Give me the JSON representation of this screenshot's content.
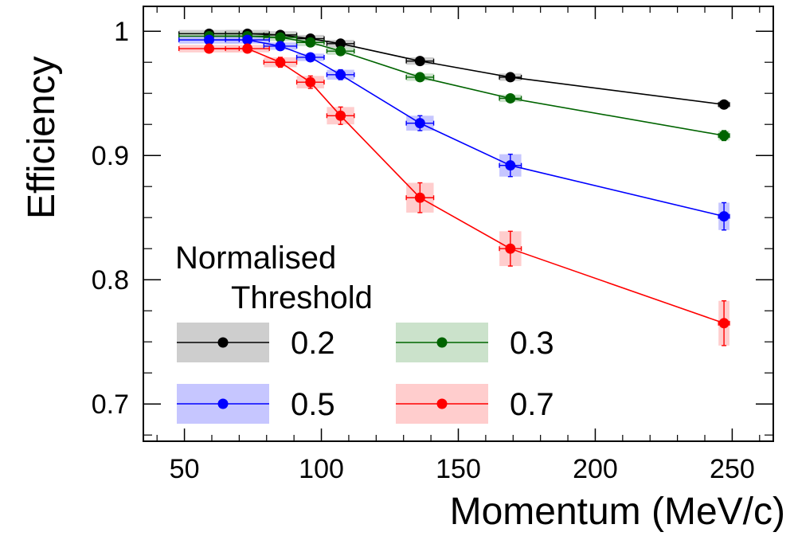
{
  "chart_data": {
    "type": "line",
    "xlabel": "Momentum (MeV/c)",
    "ylabel": "Efficiency",
    "xlim": [
      35,
      265
    ],
    "ylim": [
      0.67,
      1.02
    ],
    "x_ticks": [
      50,
      100,
      150,
      200,
      250
    ],
    "x_tick_labels": [
      "50",
      "100",
      "150",
      "200",
      "250"
    ],
    "y_ticks": [
      0.7,
      0.8,
      0.9,
      1.0
    ],
    "y_tick_labels": [
      "0.7",
      "0.8",
      "0.9",
      "1"
    ],
    "grid": false,
    "legend": {
      "title_line1": "Normalised",
      "title_line2": "Threshold",
      "placement": "bottom-left"
    },
    "series": [
      {
        "name": "0.2",
        "color": "#000000",
        "band_color": "#bdbdbd",
        "x": [
          59,
          73,
          85,
          96,
          107,
          136,
          169,
          247
        ],
        "x_err": [
          11,
          8,
          6,
          5,
          5,
          5,
          4,
          2
        ],
        "y": [
          0.998,
          0.998,
          0.997,
          0.994,
          0.99,
          0.976,
          0.963,
          0.941
        ],
        "y_err": [
          0.001,
          0.001,
          0.001,
          0.001,
          0.002,
          0.002,
          0.002,
          0.002
        ]
      },
      {
        "name": "0.3",
        "color": "#006400",
        "band_color": "#b9d8b9",
        "x": [
          59,
          73,
          85,
          96,
          107,
          136,
          169,
          247
        ],
        "x_err": [
          11,
          8,
          6,
          5,
          5,
          5,
          4,
          2
        ],
        "y": [
          0.996,
          0.996,
          0.995,
          0.991,
          0.984,
          0.963,
          0.946,
          0.916
        ],
        "y_err": [
          0.001,
          0.001,
          0.001,
          0.001,
          0.002,
          0.002,
          0.003,
          0.004
        ]
      },
      {
        "name": "0.5",
        "color": "#0000ff",
        "band_color": "#b3b3ff",
        "x": [
          59,
          73,
          85,
          96,
          107,
          136,
          169,
          247
        ],
        "x_err": [
          11,
          8,
          6,
          5,
          5,
          5,
          4,
          2
        ],
        "y": [
          0.993,
          0.993,
          0.988,
          0.979,
          0.965,
          0.926,
          0.892,
          0.851
        ],
        "y_err": [
          0.002,
          0.002,
          0.003,
          0.003,
          0.004,
          0.006,
          0.009,
          0.011
        ]
      },
      {
        "name": "0.7",
        "color": "#ff0000",
        "band_color": "#ffbcbc",
        "x": [
          59,
          73,
          85,
          96,
          107,
          136,
          169,
          247
        ],
        "x_err": [
          11,
          8,
          6,
          5,
          5,
          5,
          4,
          2
        ],
        "y": [
          0.986,
          0.986,
          0.975,
          0.959,
          0.932,
          0.866,
          0.825,
          0.765
        ],
        "y_err": [
          0.002,
          0.003,
          0.004,
          0.005,
          0.007,
          0.012,
          0.014,
          0.018
        ]
      }
    ]
  }
}
